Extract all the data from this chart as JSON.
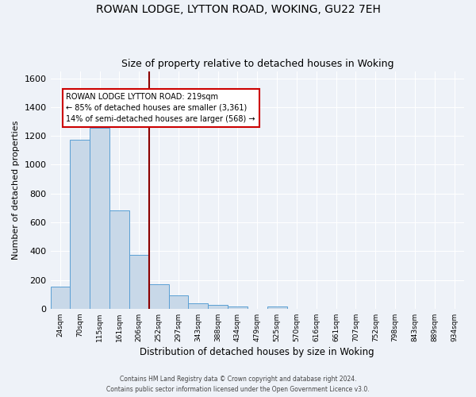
{
  "title1": "ROWAN LODGE, LYTTON ROAD, WOKING, GU22 7EH",
  "title2": "Size of property relative to detached houses in Woking",
  "xlabel": "Distribution of detached houses by size in Woking",
  "ylabel": "Number of detached properties",
  "categories": [
    "24sqm",
    "70sqm",
    "115sqm",
    "161sqm",
    "206sqm",
    "252sqm",
    "297sqm",
    "343sqm",
    "388sqm",
    "434sqm",
    "479sqm",
    "525sqm",
    "570sqm",
    "616sqm",
    "661sqm",
    "707sqm",
    "752sqm",
    "798sqm",
    "843sqm",
    "889sqm",
    "934sqm"
  ],
  "values": [
    155,
    1175,
    1255,
    680,
    375,
    170,
    90,
    40,
    28,
    18,
    0,
    15,
    0,
    0,
    0,
    0,
    0,
    0,
    0,
    0,
    0
  ],
  "bar_color": "#c8d8e8",
  "bar_edge_color": "#5a9fd4",
  "vline_x": 4.5,
  "vline_color": "#8b0000",
  "annotation_text": "ROWAN LODGE LYTTON ROAD: 219sqm\n← 85% of detached houses are smaller (3,361)\n14% of semi-detached houses are larger (568) →",
  "annotation_box_color": "white",
  "annotation_border_color": "#cc0000",
  "footer1": "Contains HM Land Registry data © Crown copyright and database right 2024.",
  "footer2": "Contains public sector information licensed under the Open Government Licence v3.0.",
  "ylim": [
    0,
    1650
  ],
  "bg_color": "#eef2f8",
  "grid_color": "#ffffff",
  "title1_fontsize": 10,
  "title2_fontsize": 9,
  "yticks": [
    0,
    200,
    400,
    600,
    800,
    1000,
    1200,
    1400,
    1600
  ]
}
